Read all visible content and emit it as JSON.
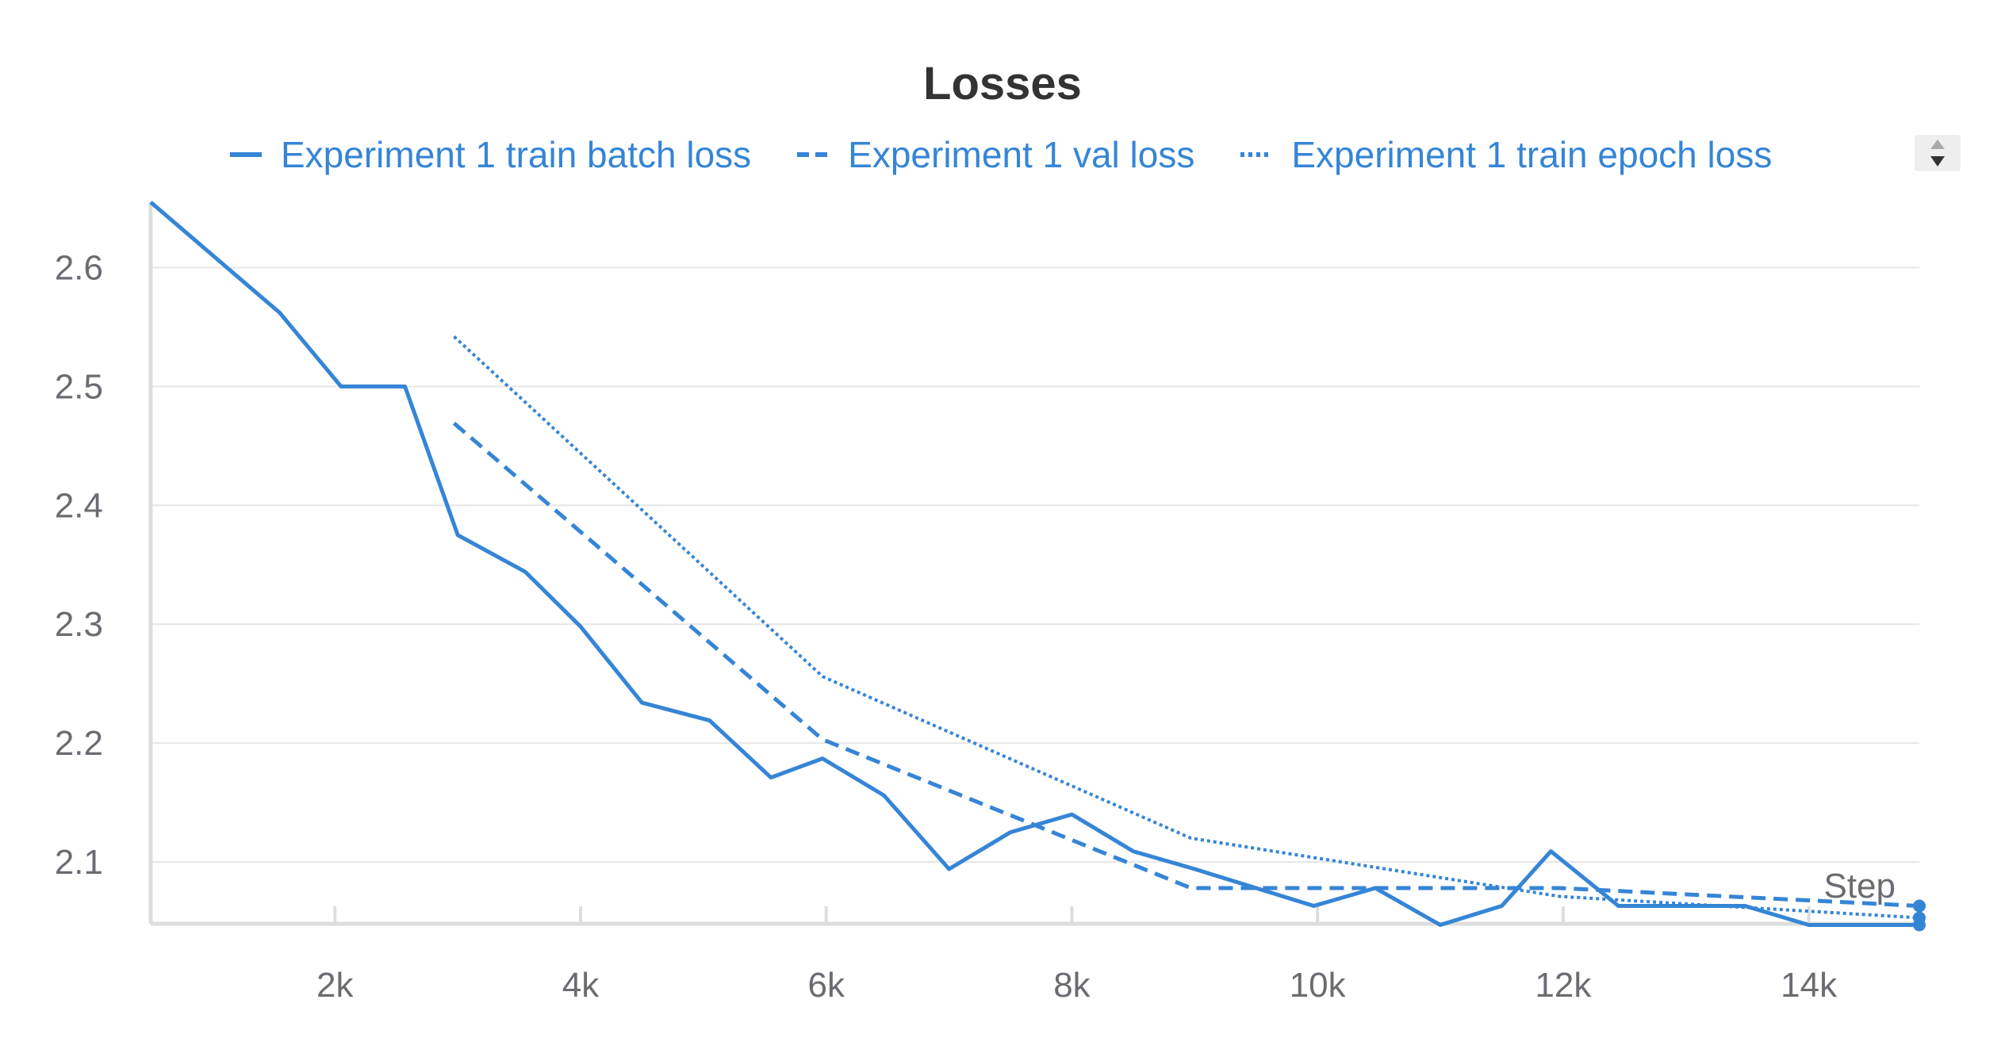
{
  "chart_data": {
    "type": "line",
    "title": "Losses",
    "xlabel": "Step",
    "ylabel": "",
    "xlim": [
      500,
      14900
    ],
    "ylim": [
      2.048,
      2.655
    ],
    "x_ticks": [
      2000,
      4000,
      6000,
      8000,
      10000,
      12000,
      14000
    ],
    "x_tick_labels": [
      "2k",
      "4k",
      "6k",
      "8k",
      "10k",
      "12k",
      "14k"
    ],
    "y_ticks": [
      2.1,
      2.2,
      2.3,
      2.4,
      2.5,
      2.6
    ],
    "y_tick_labels": [
      "2.1",
      "2.2",
      "2.3",
      "2.4",
      "2.5",
      "2.6"
    ],
    "grid": true,
    "legend_position": "top",
    "series": [
      {
        "name": "Experiment 1 train batch loss",
        "style": "solid",
        "color": "#3585d6",
        "points": [
          [
            500,
            2.655
          ],
          [
            1550,
            2.562
          ],
          [
            2050,
            2.5
          ],
          [
            2570,
            2.5
          ],
          [
            3000,
            2.375
          ],
          [
            3550,
            2.344
          ],
          [
            4000,
            2.298
          ],
          [
            4500,
            2.234
          ],
          [
            5050,
            2.219
          ],
          [
            5550,
            2.171
          ],
          [
            5970,
            2.187
          ],
          [
            6470,
            2.156
          ],
          [
            7000,
            2.094
          ],
          [
            7500,
            2.125
          ],
          [
            8000,
            2.14
          ],
          [
            8500,
            2.109
          ],
          [
            9000,
            2.094
          ],
          [
            9500,
            2.078
          ],
          [
            9970,
            2.063
          ],
          [
            10470,
            2.078
          ],
          [
            11000,
            2.047
          ],
          [
            11500,
            2.063
          ],
          [
            11900,
            2.109
          ],
          [
            12450,
            2.063
          ],
          [
            12970,
            2.063
          ],
          [
            13480,
            2.063
          ],
          [
            14000,
            2.047
          ],
          [
            14900,
            2.047
          ]
        ]
      },
      {
        "name": "Experiment 1 val loss",
        "style": "dashed",
        "color": "#3585d6",
        "points": [
          [
            2970,
            2.469
          ],
          [
            5970,
            2.203
          ],
          [
            8970,
            2.078
          ],
          [
            11970,
            2.078
          ],
          [
            14900,
            2.063
          ]
        ]
      },
      {
        "name": "Experiment 1 train epoch loss",
        "style": "dotted",
        "color": "#3585d6",
        "points": [
          [
            2970,
            2.542
          ],
          [
            5970,
            2.256
          ],
          [
            8970,
            2.12
          ],
          [
            11970,
            2.071
          ],
          [
            14900,
            2.053
          ]
        ]
      }
    ]
  }
}
